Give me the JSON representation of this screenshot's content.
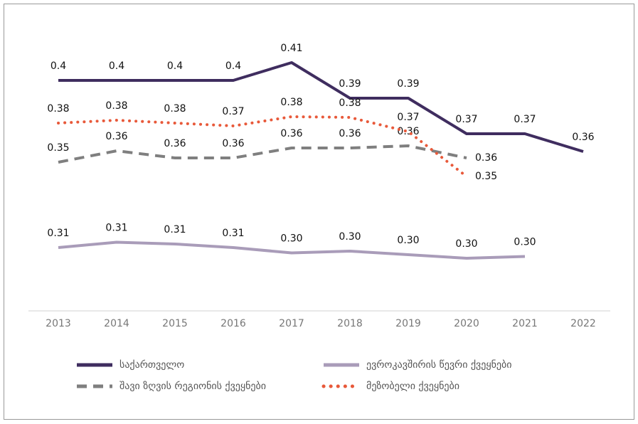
{
  "chart_data": {
    "type": "line",
    "categories": [
      "2013",
      "2014",
      "2015",
      "2016",
      "2017",
      "2018",
      "2019",
      "2020",
      "2021",
      "2022"
    ],
    "ylim": [
      0.27,
      0.43
    ],
    "series": [
      {
        "name": "საქართველო",
        "color": "#3f2d5f",
        "style": "solid",
        "values": [
          0.4,
          0.4,
          0.4,
          0.4,
          0.41,
          0.39,
          0.39,
          0.37,
          0.37,
          0.36
        ]
      },
      {
        "name": "ევროკავშირის წევრი ქვეყნები",
        "color": "#a99cb9",
        "style": "solid",
        "values": [
          0.306,
          0.309,
          0.308,
          0.306,
          0.303,
          0.304,
          0.302,
          0.3,
          0.301,
          null
        ],
        "value_labels": [
          "0.31",
          "0.31",
          "0.31",
          "0.31",
          "0.30",
          "0.30",
          "0.30",
          "0.30",
          "0.30",
          null
        ]
      },
      {
        "name": "შავი ზღვის რეგიონის ქვეყნები",
        "color": "#7f7f7f",
        "style": "dashed",
        "values": [
          0.354,
          0.3604,
          0.3564,
          0.3564,
          0.362,
          0.362,
          0.3632,
          0.3564,
          null,
          null
        ],
        "value_labels": [
          "0.35",
          "0.36",
          "0.36",
          "0.36",
          "0.36",
          "0.36",
          "0.36",
          "0.36",
          null,
          null
        ]
      },
      {
        "name": "მეზობელი ქვეყნები",
        "color": "#e8593a",
        "style": "dotted",
        "values": [
          0.376,
          0.3776,
          0.376,
          0.3744,
          0.3796,
          0.3792,
          0.3712,
          0.346,
          null,
          null
        ],
        "value_labels": [
          "0.38",
          "0.38",
          "0.38",
          "0.37",
          "0.38",
          "0.38",
          "0.37",
          "0.35",
          null,
          null
        ]
      }
    ]
  }
}
